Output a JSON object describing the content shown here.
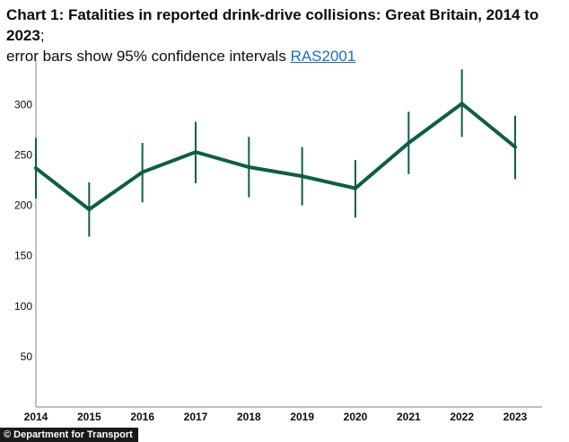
{
  "header": {
    "title": "Chart 1: Fatalities in reported drink-drive collisions: Great Britain, 2014 to 2023",
    "separator": ";",
    "subtitle": "error bars show 95% confidence intervals",
    "link_text": "RAS2001"
  },
  "credit": "© Department for Transport",
  "colors": {
    "line": "#0e5e46",
    "axis": "#7f7f7f",
    "grid": "#e6e6e6"
  },
  "chart_data": {
    "type": "line",
    "title": "Chart 1: Fatalities in reported drink-drive collisions: Great Britain, 2014 to 2023",
    "x": [
      "2014",
      "2015",
      "2016",
      "2017",
      "2018",
      "2019",
      "2020",
      "2021",
      "2022",
      "2023"
    ],
    "yticks": [
      50,
      100,
      150,
      200,
      250,
      300
    ],
    "ylim": [
      0,
      345
    ],
    "grid": false,
    "series": [
      {
        "values": [
          237,
          196,
          233,
          253,
          238,
          229,
          217,
          262,
          301,
          258
        ],
        "lower": [
          207,
          169,
          203,
          222,
          208,
          200,
          188,
          231,
          268,
          226
        ],
        "upper": [
          267,
          223,
          262,
          283,
          268,
          258,
          245,
          293,
          335,
          289
        ]
      }
    ]
  }
}
